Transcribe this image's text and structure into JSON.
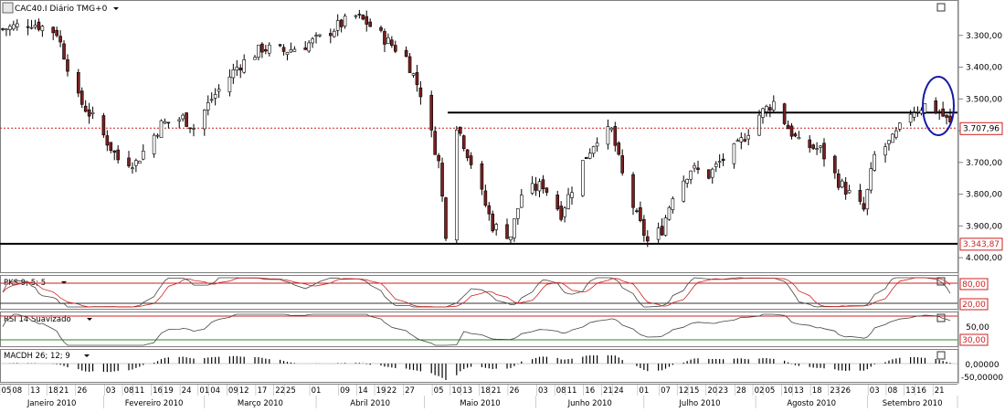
{
  "panels": {
    "price": {
      "title": "CAC40.I Diário TMG+0",
      "y_ticks": [
        "4.000,00",
        "3.900,00",
        "3.800,00",
        "3.700,00",
        "3.600,00",
        "3.500,00",
        "3.400,00",
        "3.300,00"
      ]
    },
    "pks": {
      "title": "PKS 9; 5; 5",
      "y_ticks": [
        "80,00",
        "20,00"
      ]
    },
    "rsi": {
      "title": "RSI 14 Suavizado",
      "y_ticks": [
        "50,00",
        "30,00"
      ]
    },
    "macd": {
      "title": "MACDH 26; 12; 9",
      "y_ticks": [
        "0,00000",
        "-50,00000"
      ]
    }
  },
  "chart_data": [
    {
      "panel": "price",
      "type": "candlestick",
      "title": "CAC40.I Diário TMG+0",
      "ylim": [
        3260,
        4100
      ],
      "y_ticks": [
        3300,
        3400,
        3500,
        3600,
        3700,
        3800,
        3900,
        4000
      ],
      "last_price_label": "3.707,96",
      "last_price": 3707.96,
      "support_label": "3.343,87",
      "support_level": 3343.87,
      "resistance_level": 3757,
      "trend_start_date": "2010-01-04",
      "trend_anchors": [
        [
          "2010-01-04",
          4020
        ],
        [
          "2010-01-12",
          4040
        ],
        [
          "2010-01-19",
          4010
        ],
        [
          "2010-01-25",
          3800
        ],
        [
          "2010-01-29",
          3740
        ],
        [
          "2010-02-05",
          3610
        ],
        [
          "2010-02-10",
          3600
        ],
        [
          "2010-02-17",
          3720
        ],
        [
          "2010-02-23",
          3740
        ],
        [
          "2010-02-26",
          3710
        ],
        [
          "2010-03-03",
          3800
        ],
        [
          "2010-03-10",
          3900
        ],
        [
          "2010-03-17",
          3960
        ],
        [
          "2010-03-23",
          3950
        ],
        [
          "2010-03-29",
          3970
        ],
        [
          "2010-04-02",
          3990
        ],
        [
          "2010-04-07",
          4030
        ],
        [
          "2010-04-12",
          4060
        ],
        [
          "2010-04-15",
          4040
        ],
        [
          "2010-04-20",
          3990
        ],
        [
          "2010-04-26",
          3930
        ],
        [
          "2010-04-30",
          3820
        ],
        [
          "2010-05-05",
          3600
        ],
        [
          "2010-05-07",
          3380
        ],
        [
          "2010-05-10",
          3720
        ],
        [
          "2010-05-14",
          3600
        ],
        [
          "2010-05-20",
          3400
        ],
        [
          "2010-05-25",
          3370
        ],
        [
          "2010-05-28",
          3500
        ],
        [
          "2010-06-03",
          3530
        ],
        [
          "2010-06-08",
          3440
        ],
        [
          "2010-06-14",
          3600
        ],
        [
          "2010-06-18",
          3680
        ],
        [
          "2010-06-22",
          3700
        ],
        [
          "2010-06-25",
          3560
        ],
        [
          "2010-06-29",
          3430
        ],
        [
          "2010-07-02",
          3350
        ],
        [
          "2010-07-06",
          3390
        ],
        [
          "2010-07-09",
          3500
        ],
        [
          "2010-07-14",
          3580
        ],
        [
          "2010-07-19",
          3560
        ],
        [
          "2010-07-22",
          3600
        ],
        [
          "2010-07-27",
          3650
        ],
        [
          "2010-08-02",
          3750
        ],
        [
          "2010-08-06",
          3790
        ],
        [
          "2010-08-10",
          3710
        ],
        [
          "2010-08-13",
          3660
        ],
        [
          "2010-08-19",
          3640
        ],
        [
          "2010-08-24",
          3540
        ],
        [
          "2010-08-31",
          3450
        ],
        [
          "2010-09-03",
          3620
        ],
        [
          "2010-09-08",
          3670
        ],
        [
          "2010-09-13",
          3760
        ],
        [
          "2010-09-17",
          3780
        ],
        [
          "2010-09-21",
          3760
        ],
        [
          "2010-09-24",
          3720
        ]
      ]
    },
    {
      "panel": "pks",
      "type": "line",
      "title": "PKS 9; 5; 5",
      "ylim": [
        0,
        100
      ],
      "levels": [
        80,
        20
      ],
      "series": [
        {
          "color": "#444444"
        },
        {
          "color": "#d02020"
        }
      ]
    },
    {
      "panel": "rsi",
      "type": "line",
      "title": "RSI 14 Suavizado",
      "ylim": [
        20,
        70
      ],
      "levels": [
        70,
        30
      ],
      "series": [
        {
          "color": "#444444"
        }
      ]
    },
    {
      "panel": "macd",
      "type": "bar",
      "title": "MACDH 26; 12; 9",
      "ylim": [
        -60,
        30
      ],
      "y_ticks": [
        0,
        -50
      ]
    }
  ],
  "x_axis": {
    "months": [
      "Janeiro 2010",
      "Fevereiro 2010",
      "Março 2010",
      "Abril 2010",
      "Maio 2010",
      "Junho 2010",
      "Julho 2010",
      "Agosto 2010",
      "Setembro 2010"
    ],
    "days": [
      {
        "label": "05",
        "date": "2010-01-05"
      },
      {
        "label": "08",
        "date": "2010-01-08"
      },
      {
        "label": "13",
        "date": "2010-01-13"
      },
      {
        "label": "18",
        "date": "2010-01-18"
      },
      {
        "label": "21",
        "date": "2010-01-21"
      },
      {
        "label": "26",
        "date": "2010-01-26"
      },
      {
        "label": "03",
        "date": "2010-02-03"
      },
      {
        "label": "08",
        "date": "2010-02-08"
      },
      {
        "label": "11",
        "date": "2010-02-11"
      },
      {
        "label": "16",
        "date": "2010-02-16"
      },
      {
        "label": "19",
        "date": "2010-02-19"
      },
      {
        "label": "24",
        "date": "2010-02-24"
      },
      {
        "label": "01",
        "date": "2010-03-01"
      },
      {
        "label": "04",
        "date": "2010-03-04"
      },
      {
        "label": "09",
        "date": "2010-03-09"
      },
      {
        "label": "12",
        "date": "2010-03-12"
      },
      {
        "label": "17",
        "date": "2010-03-17"
      },
      {
        "label": "22",
        "date": "2010-03-22"
      },
      {
        "label": "25",
        "date": "2010-03-25"
      },
      {
        "label": "01",
        "date": "2010-04-01"
      },
      {
        "label": "09",
        "date": "2010-04-09"
      },
      {
        "label": "14",
        "date": "2010-04-14"
      },
      {
        "label": "19",
        "date": "2010-04-19"
      },
      {
        "label": "22",
        "date": "2010-04-22"
      },
      {
        "label": "27",
        "date": "2010-04-27"
      },
      {
        "label": "05",
        "date": "2010-05-05"
      },
      {
        "label": "10",
        "date": "2010-05-10"
      },
      {
        "label": "13",
        "date": "2010-05-13"
      },
      {
        "label": "18",
        "date": "2010-05-18"
      },
      {
        "label": "21",
        "date": "2010-05-21"
      },
      {
        "label": "26",
        "date": "2010-05-26"
      },
      {
        "label": "03",
        "date": "2010-06-03"
      },
      {
        "label": "08",
        "date": "2010-06-08"
      },
      {
        "label": "11",
        "date": "2010-06-11"
      },
      {
        "label": "16",
        "date": "2010-06-16"
      },
      {
        "label": "21",
        "date": "2010-06-21"
      },
      {
        "label": "24",
        "date": "2010-06-24"
      },
      {
        "label": "01",
        "date": "2010-07-01"
      },
      {
        "label": "07",
        "date": "2010-07-07"
      },
      {
        "label": "12",
        "date": "2010-07-12"
      },
      {
        "label": "15",
        "date": "2010-07-15"
      },
      {
        "label": "20",
        "date": "2010-07-20"
      },
      {
        "label": "23",
        "date": "2010-07-23"
      },
      {
        "label": "28",
        "date": "2010-07-28"
      },
      {
        "label": "02",
        "date": "2010-08-02"
      },
      {
        "label": "05",
        "date": "2010-08-05"
      },
      {
        "label": "10",
        "date": "2010-08-10"
      },
      {
        "label": "13",
        "date": "2010-08-13"
      },
      {
        "label": "18",
        "date": "2010-08-18"
      },
      {
        "label": "23",
        "date": "2010-08-23"
      },
      {
        "label": "26",
        "date": "2010-08-26"
      },
      {
        "label": "03",
        "date": "2010-09-03"
      },
      {
        "label": "08",
        "date": "2010-09-08"
      },
      {
        "label": "13",
        "date": "2010-09-13"
      },
      {
        "label": "16",
        "date": "2010-09-16"
      },
      {
        "label": "21",
        "date": "2010-09-21"
      }
    ]
  },
  "colors": {
    "up_body": "#ffffff",
    "down_body": "#7a1f1f",
    "candle_outline": "#000000",
    "highlight_ellipse": "#1a1aa6",
    "last_price_line": "#cc2020",
    "label_box_border": "#cc2020"
  }
}
